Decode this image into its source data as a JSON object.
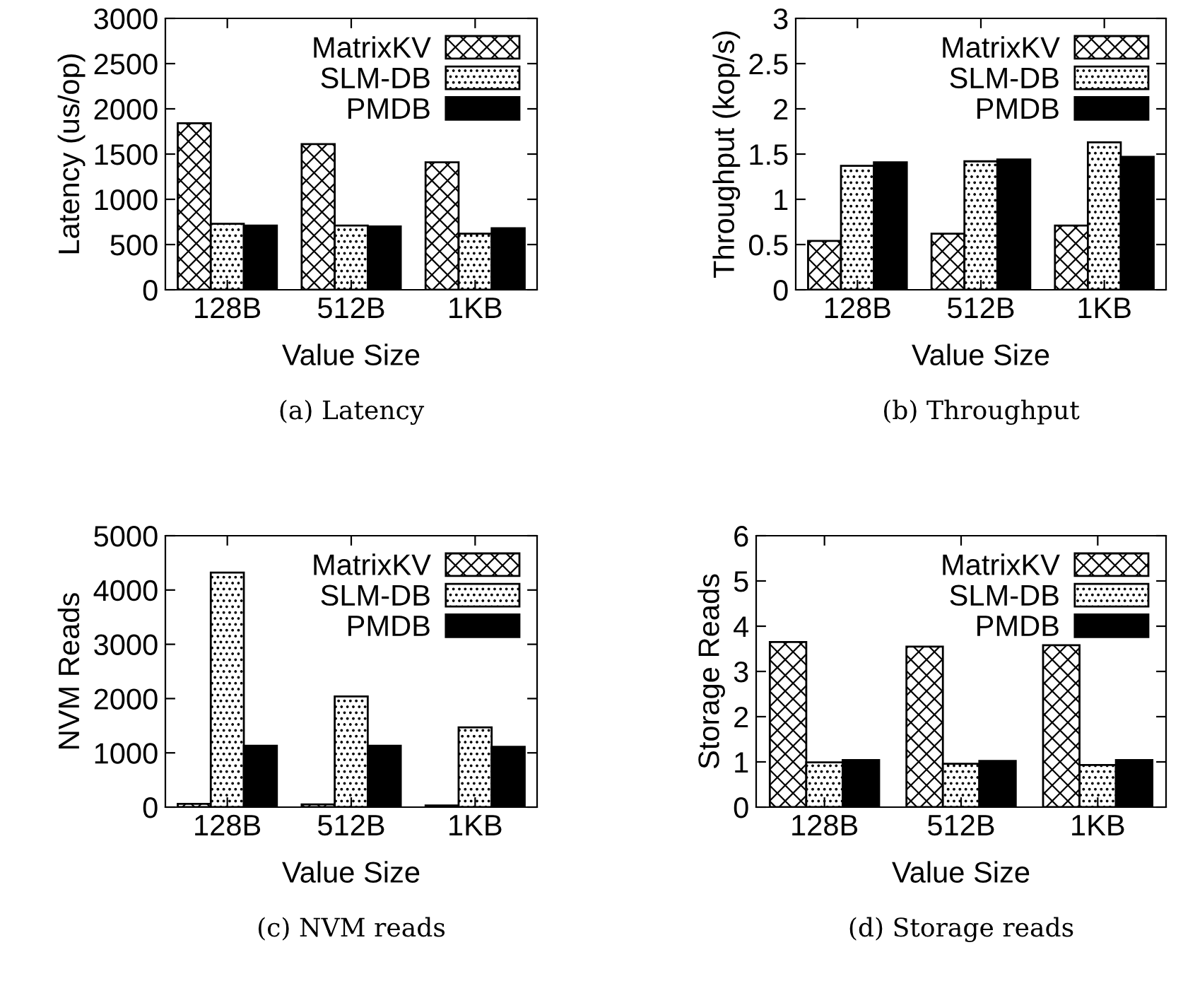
{
  "chart_data": [
    {
      "type": "bar",
      "title": "(a) Latency",
      "xlabel": "Value Size",
      "ylabel": "Latency (us/op)",
      "categories": [
        "128B",
        "512B",
        "1KB"
      ],
      "legend": "top right",
      "grid": false,
      "ylim": [
        0,
        3000
      ],
      "yticks": [
        0,
        500,
        1000,
        1500,
        2000,
        2500,
        3000
      ],
      "series": [
        {
          "name": "MatrixKV",
          "color": "#000000",
          "values": [
            1840,
            1610,
            1410
          ]
        },
        {
          "name": "SLM-DB",
          "color": "#000000",
          "values": [
            730,
            710,
            620
          ]
        },
        {
          "name": "PMDB",
          "color": "#000000",
          "values": [
            710,
            700,
            680
          ]
        }
      ]
    },
    {
      "type": "bar",
      "title": "(b) Throughput",
      "xlabel": "Value Size",
      "ylabel": "Throughput (kop/s)",
      "categories": [
        "128B",
        "512B",
        "1KB"
      ],
      "legend": "top right",
      "grid": false,
      "ylim": [
        0,
        3
      ],
      "yticks": [
        0,
        0.5,
        1,
        1.5,
        2,
        2.5,
        3
      ],
      "series": [
        {
          "name": "MatrixKV",
          "color": "#000000",
          "values": [
            0.54,
            0.62,
            0.71
          ]
        },
        {
          "name": "SLM-DB",
          "color": "#000000",
          "values": [
            1.37,
            1.42,
            1.63
          ]
        },
        {
          "name": "PMDB",
          "color": "#000000",
          "values": [
            1.41,
            1.44,
            1.47
          ]
        }
      ]
    },
    {
      "type": "bar",
      "title": "(c) NVM reads",
      "xlabel": "Value Size",
      "ylabel": "NVM Reads",
      "categories": [
        "128B",
        "512B",
        "1KB"
      ],
      "legend": "top right",
      "grid": false,
      "ylim": [
        0,
        5000
      ],
      "yticks": [
        0,
        1000,
        2000,
        3000,
        4000,
        5000
      ],
      "series": [
        {
          "name": "MatrixKV",
          "color": "#000000",
          "values": [
            60,
            50,
            30
          ]
        },
        {
          "name": "SLM-DB",
          "color": "#000000",
          "values": [
            4320,
            2040,
            1470
          ]
        },
        {
          "name": "PMDB",
          "color": "#000000",
          "values": [
            1130,
            1130,
            1110
          ]
        }
      ]
    },
    {
      "type": "bar",
      "title": "(d) Storage reads",
      "xlabel": "Value Size",
      "ylabel": "Storage Reads",
      "categories": [
        "128B",
        "512B",
        "1KB"
      ],
      "legend": "top right",
      "grid": false,
      "ylim": [
        0,
        6
      ],
      "yticks": [
        0,
        1,
        2,
        3,
        4,
        5,
        6
      ],
      "series": [
        {
          "name": "MatrixKV",
          "color": "#000000",
          "values": [
            3.65,
            3.55,
            3.58
          ]
        },
        {
          "name": "SLM-DB",
          "color": "#000000",
          "values": [
            0.99,
            0.96,
            0.93
          ]
        },
        {
          "name": "PMDB",
          "color": "#000000",
          "values": [
            1.04,
            1.02,
            1.04
          ]
        }
      ]
    }
  ]
}
